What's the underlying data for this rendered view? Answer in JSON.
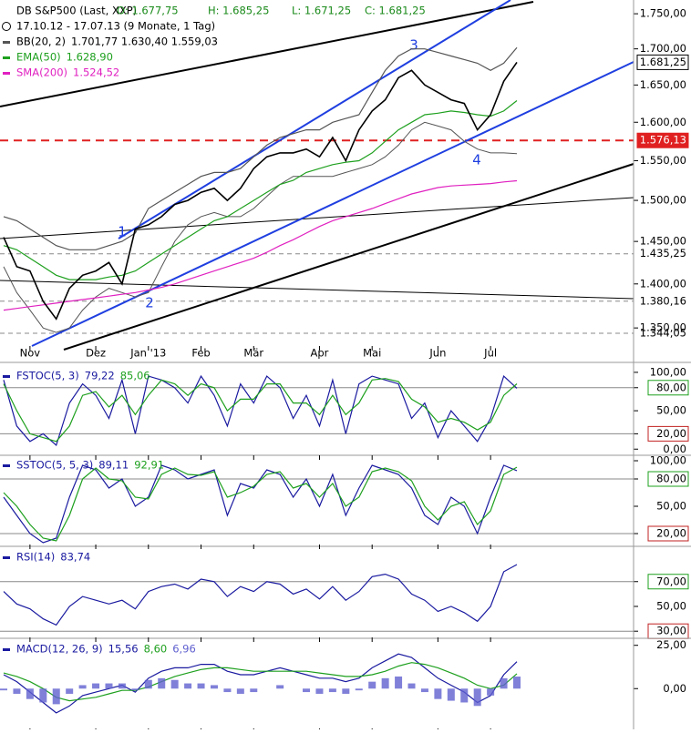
{
  "chart_data": [
    {
      "type": "line",
      "log": true,
      "title": "DB S&P500 (Last, XXP)",
      "ohlc": [
        "O: 1.677,75",
        "H: 1.685,25",
        "L: 1.671,25",
        "C: 1.681,25"
      ],
      "subtitle": "17.10.12 - 17.07.13 (9 Monate, 1 Tag)",
      "waves": [
        "1",
        "2",
        "3",
        "4"
      ],
      "categories": [
        null,
        null,
        "Nov",
        null,
        null,
        null,
        null,
        "Dez",
        null,
        null,
        null,
        "Jan '13",
        null,
        null,
        null,
        "Feb",
        null,
        null,
        null,
        "Mär",
        null,
        null,
        null,
        null,
        "Apr",
        null,
        null,
        null,
        "Mai",
        null,
        null,
        null,
        null,
        "Jun",
        null,
        null,
        null,
        "Jul",
        null,
        null
      ],
      "ylim": [
        1330,
        1770
      ],
      "yticks": [
        {
          "value": 1750,
          "label": "1.750,00"
        },
        {
          "value": 1700,
          "label": "1.700,00"
        },
        {
          "value": 1650,
          "label": "1.650,00"
        },
        {
          "value": 1600,
          "label": "1.600,00"
        },
        {
          "value": 1550,
          "label": "1.550,00"
        },
        {
          "value": 1500,
          "label": "1.500,00"
        },
        {
          "value": 1450,
          "label": "1.450,00"
        },
        {
          "value": 1400,
          "label": "1.400,00"
        },
        {
          "value": 1350,
          "label": "1.350,00"
        }
      ],
      "annotations": [
        {
          "value": 1681.25,
          "label": "1.681,25",
          "style": "box"
        },
        {
          "value": 1576.13,
          "label": "1.576,13",
          "style": "red-box"
        },
        {
          "value": 1435.25,
          "label": "1.435,25",
          "style": "dashed"
        },
        {
          "value": 1380.16,
          "label": "1.380,16",
          "style": "dashed"
        },
        {
          "value": 1344.05,
          "label": "1.344,05",
          "style": "dashed"
        }
      ],
      "series": [
        {
          "name": "BB(20, 2)",
          "value_label": "1.701,77  1.630,40  1.559,03",
          "color": "#555555",
          "values": [
            1480,
            1475,
            1465,
            1455,
            1445,
            1440,
            1440,
            1440,
            1445,
            1450,
            1460,
            1490,
            1500,
            1510,
            1520,
            1530,
            1535,
            1535,
            1540,
            1555,
            1570,
            1580,
            1585,
            1590,
            1590,
            1600,
            1605,
            1610,
            1640,
            1670,
            1690,
            1700,
            1700,
            1695,
            1690,
            1685,
            1680,
            1670,
            1680,
            1701.77
          ],
          "lower": [
            1420,
            1390,
            1370,
            1350,
            1345,
            1350,
            1370,
            1385,
            1395,
            1390,
            1385,
            1390,
            1420,
            1450,
            1470,
            1480,
            1485,
            1480,
            1480,
            1490,
            1505,
            1520,
            1530,
            1530,
            1530,
            1530,
            1535,
            1540,
            1545,
            1555,
            1570,
            1590,
            1600,
            1595,
            1590,
            1575,
            1565,
            1560,
            1560,
            1559.03
          ]
        },
        {
          "name": "EMA(50)",
          "value_label": "1.628,90",
          "color": "#1ea01e",
          "values": [
            1445,
            1440,
            1430,
            1420,
            1410,
            1405,
            1405,
            1405,
            1408,
            1410,
            1415,
            1425,
            1435,
            1445,
            1455,
            1465,
            1475,
            1480,
            1490,
            1500,
            1510,
            1520,
            1525,
            1535,
            1540,
            1545,
            1548,
            1550,
            1560,
            1575,
            1590,
            1600,
            1610,
            1612,
            1615,
            1613,
            1610,
            1608,
            1615,
            1628.9
          ]
        },
        {
          "name": "SMA(200)",
          "value_label": "1.524,52",
          "color": "#e020c0",
          "values": [
            1370,
            1372,
            1374,
            1376,
            1378,
            1380,
            1382,
            1384,
            1386,
            1388,
            1390,
            1393,
            1396,
            1400,
            1405,
            1410,
            1415,
            1420,
            1425,
            1430,
            1437,
            1445,
            1452,
            1460,
            1468,
            1475,
            1480,
            1485,
            1490,
            1496,
            1502,
            1508,
            1512,
            1516,
            1518,
            1519,
            1520,
            1521,
            1523,
            1524.52
          ]
        },
        {
          "color": "#000000",
          "values": [
            1455,
            1420,
            1415,
            1380,
            1360,
            1395,
            1410,
            1415,
            1425,
            1400,
            1465,
            1470,
            1480,
            1495,
            1500,
            1510,
            1515,
            1500,
            1515,
            1540,
            1555,
            1560,
            1560,
            1565,
            1555,
            1580,
            1550,
            1590,
            1615,
            1630,
            1660,
            1670,
            1650,
            1640,
            1630,
            1625,
            1590,
            1610,
            1655,
            1681.25
          ]
        }
      ]
    },
    {
      "type": "line",
      "title": "FSTOC(5, 3)",
      "ylim": [
        -8,
        107
      ],
      "yticks": [
        {
          "value": 100,
          "label": "100,00"
        },
        {
          "value": 80,
          "label": "80,00"
        },
        {
          "value": 50,
          "label": "50,00"
        },
        {
          "value": 20,
          "label": "20,00"
        },
        {
          "value": 0,
          "label": "0,00"
        }
      ],
      "levels": [
        80,
        20
      ],
      "series": [
        {
          "value_label": "79,22",
          "color": "#1a1aa0",
          "values": [
            90,
            30,
            10,
            20,
            5,
            60,
            85,
            70,
            40,
            90,
            20,
            95,
            90,
            80,
            60,
            95,
            70,
            30,
            85,
            60,
            95,
            80,
            40,
            70,
            30,
            90,
            20,
            85,
            95,
            90,
            85,
            40,
            60,
            15,
            50,
            30,
            10,
            40,
            95,
            79.22
          ]
        },
        {
          "value_label": "85,06",
          "color": "#1ea01e",
          "values": [
            85,
            50,
            20,
            15,
            10,
            30,
            70,
            75,
            55,
            70,
            45,
            70,
            90,
            85,
            70,
            85,
            80,
            50,
            65,
            65,
            85,
            85,
            60,
            60,
            45,
            70,
            45,
            60,
            90,
            92,
            88,
            65,
            55,
            35,
            40,
            35,
            25,
            35,
            70,
            85.06
          ]
        }
      ]
    },
    {
      "type": "line",
      "title": "SSTOC(5, 5, 3)",
      "ylim": [
        8,
        105
      ],
      "yticks": [
        {
          "value": 100,
          "label": "100,00"
        },
        {
          "value": 80,
          "label": "80,00"
        },
        {
          "value": 50,
          "label": "50,00"
        },
        {
          "value": 20,
          "label": "20,00"
        }
      ],
      "levels": [
        80,
        20
      ],
      "series": [
        {
          "value_label": "89,11",
          "color": "#1a1aa0",
          "values": [
            60,
            40,
            20,
            10,
            15,
            60,
            95,
            90,
            70,
            80,
            50,
            60,
            95,
            90,
            80,
            85,
            90,
            40,
            75,
            70,
            90,
            85,
            60,
            80,
            50,
            85,
            40,
            70,
            95,
            90,
            85,
            70,
            40,
            30,
            60,
            50,
            20,
            60,
            95,
            89.11
          ]
        },
        {
          "value_label": "92,91",
          "color": "#1ea01e",
          "values": [
            65,
            50,
            30,
            15,
            12,
            40,
            80,
            92,
            80,
            78,
            60,
            58,
            85,
            92,
            85,
            84,
            88,
            60,
            65,
            72,
            85,
            88,
            70,
            75,
            60,
            75,
            50,
            60,
            88,
            92,
            88,
            78,
            50,
            35,
            50,
            55,
            30,
            45,
            85,
            92.91
          ]
        }
      ]
    },
    {
      "type": "line",
      "title": "RSI(14)",
      "ylim": [
        25,
        97
      ],
      "yticks": [
        {
          "value": 70,
          "label": "70,00"
        },
        {
          "value": 50,
          "label": "50,00"
        },
        {
          "value": 30,
          "label": "30,00"
        }
      ],
      "levels": [
        70,
        30
      ],
      "series": [
        {
          "value_label": "83,74",
          "color": "#1a1aa0",
          "values": [
            62,
            52,
            48,
            40,
            35,
            50,
            58,
            55,
            52,
            55,
            48,
            62,
            66,
            68,
            64,
            72,
            70,
            58,
            66,
            62,
            70,
            68,
            60,
            64,
            56,
            66,
            55,
            62,
            74,
            76,
            72,
            60,
            55,
            46,
            50,
            45,
            38,
            50,
            78,
            83.74
          ]
        }
      ]
    },
    {
      "type": "line",
      "title": "MACD(12, 26, 9)",
      "ylim": [
        -23,
        28
      ],
      "yticks": [
        {
          "value": 25,
          "label": "25,00"
        },
        {
          "value": 0,
          "label": "0,00"
        }
      ],
      "series": [
        {
          "value_label": "15,56",
          "color": "#1a1aa0",
          "values": [
            8,
            4,
            -2,
            -8,
            -14,
            -10,
            -4,
            -2,
            0,
            2,
            -2,
            6,
            10,
            12,
            12,
            14,
            14,
            10,
            8,
            8,
            10,
            12,
            10,
            8,
            6,
            6,
            4,
            6,
            12,
            16,
            20,
            18,
            12,
            6,
            2,
            -2,
            -8,
            -4,
            8,
            15.56
          ]
        },
        {
          "value_label": "8,60",
          "color": "#1ea01e",
          "values": [
            9,
            7,
            4,
            0,
            -5,
            -7,
            -6,
            -5,
            -3,
            -1,
            -1,
            1,
            4,
            7,
            9,
            11,
            12,
            12,
            11,
            10,
            10,
            10,
            10,
            10,
            9,
            8,
            7,
            7,
            8,
            10,
            13,
            15,
            14,
            12,
            9,
            6,
            2,
            0,
            2,
            8.6
          ]
        },
        {
          "value_label": "6,96",
          "color": "#6060d0",
          "style": "bars",
          "values": [
            -1,
            -3,
            -6,
            -8,
            -9,
            -3,
            2,
            3,
            3,
            3,
            -1,
            5,
            6,
            5,
            3,
            3,
            2,
            -2,
            -3,
            -2,
            0,
            2,
            0,
            -2,
            -3,
            -2,
            -3,
            -1,
            4,
            6,
            7,
            3,
            -2,
            -6,
            -7,
            -8,
            -10,
            -4,
            6,
            6.96
          ]
        }
      ]
    }
  ]
}
